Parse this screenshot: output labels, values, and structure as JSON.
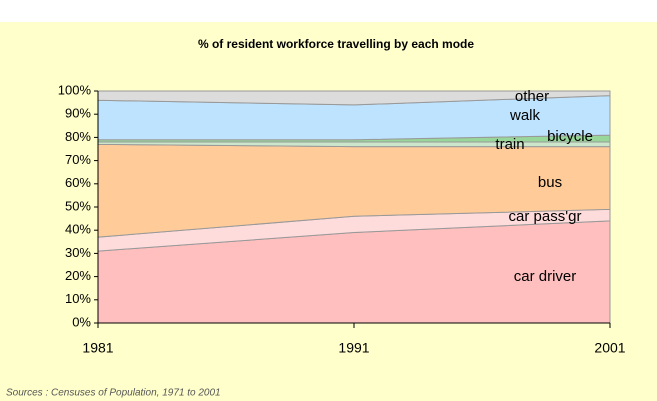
{
  "chart_data": {
    "type": "stacked_area",
    "title": "% of resident workforce travelling by each mode",
    "x": [
      1981,
      1991,
      2001
    ],
    "xlim": [
      1981,
      2001
    ],
    "xticks": [
      1981,
      1991,
      2001
    ],
    "ylim": [
      0,
      100
    ],
    "yticks": [
      {
        "value": 0,
        "label": "0%"
      },
      {
        "value": 10,
        "label": "10%"
      },
      {
        "value": 20,
        "label": "20%"
      },
      {
        "value": 30,
        "label": "30%"
      },
      {
        "value": 40,
        "label": "40%"
      },
      {
        "value": 50,
        "label": "50%"
      },
      {
        "value": 60,
        "label": "60%"
      },
      {
        "value": 70,
        "label": "70%"
      },
      {
        "value": 80,
        "label": "80%"
      },
      {
        "value": 90,
        "label": "90%"
      },
      {
        "value": 100,
        "label": "100%"
      }
    ],
    "series": [
      {
        "name": "car driver",
        "color": "#ffbfbf",
        "values": [
          31,
          39,
          44
        ]
      },
      {
        "name": "car pass'gr",
        "color": "#ffdcdc",
        "values": [
          6,
          7,
          5
        ]
      },
      {
        "name": "bus",
        "color": "#ffcc99",
        "values": [
          40,
          30,
          27
        ]
      },
      {
        "name": "train",
        "color": "#cce6cc",
        "values": [
          1,
          2,
          2
        ]
      },
      {
        "name": "bicycle",
        "color": "#99d699",
        "values": [
          1,
          1,
          3
        ]
      },
      {
        "name": "walk",
        "color": "#bde3ff",
        "values": [
          17,
          15,
          17
        ]
      },
      {
        "name": "other",
        "color": "#dcdcdc",
        "values": [
          4,
          6,
          2
        ]
      }
    ],
    "source": "Sources : Censuses of Population, 1971 to 2001"
  }
}
